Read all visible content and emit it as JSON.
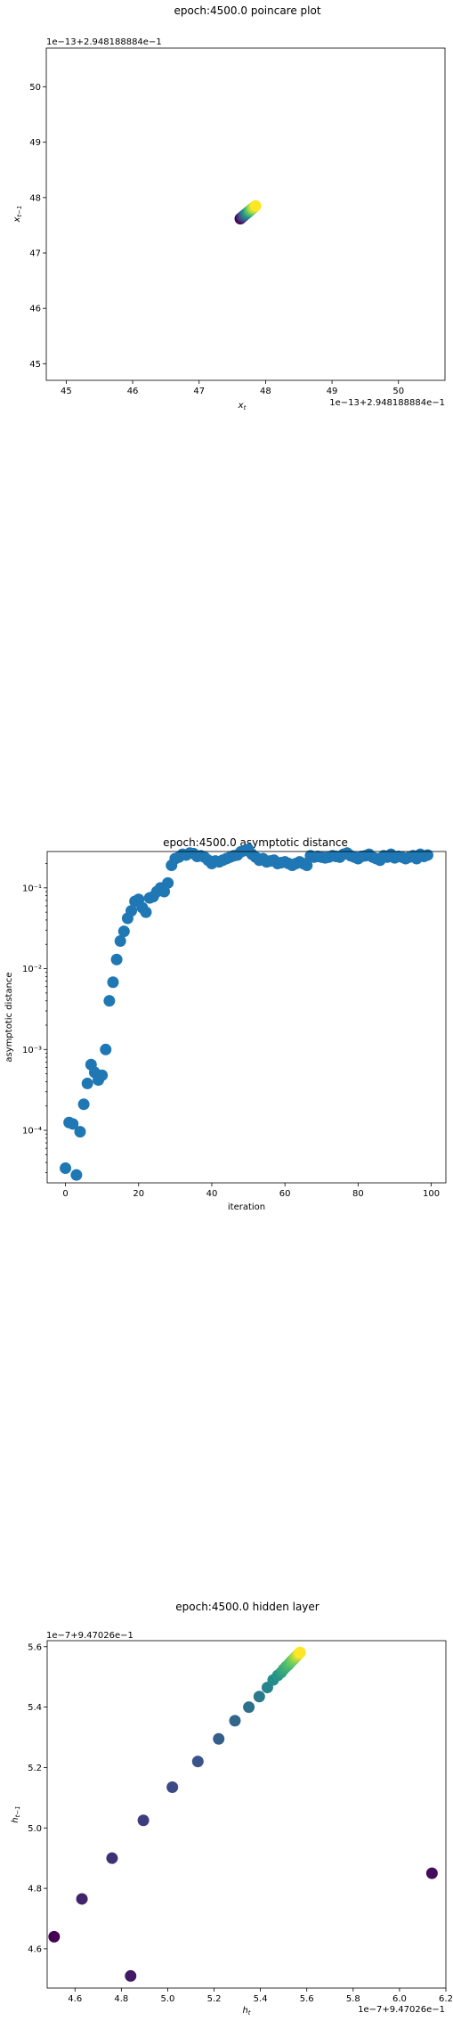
{
  "chart_data": [
    {
      "type": "scatter",
      "title": "epoch:4500.0 poincare plot",
      "xlabel": "x_t",
      "ylabel": "x_{t-1}",
      "offset_x": "1e−13+2.948188884e−1",
      "offset_y": "1e−13+2.948188884e−1",
      "xlim": [
        44.7,
        50.7
      ],
      "ylim": [
        44.7,
        50.7
      ],
      "xticks": [
        45,
        46,
        47,
        48,
        49,
        50
      ],
      "yticks": [
        45,
        46,
        47,
        48,
        49,
        50
      ],
      "xtick_labels": [
        "45",
        "46",
        "47",
        "48",
        "49",
        "50"
      ],
      "ytick_labels": [
        "45",
        "46",
        "47",
        "48",
        "49",
        "50"
      ],
      "colormap": "viridis",
      "points": [
        [
          47.62,
          47.62
        ],
        [
          47.64,
          47.64
        ],
        [
          47.66,
          47.66
        ],
        [
          47.68,
          47.68
        ],
        [
          47.7,
          47.7
        ],
        [
          47.72,
          47.72
        ],
        [
          47.74,
          47.74
        ],
        [
          47.76,
          47.76
        ],
        [
          47.78,
          47.78
        ],
        [
          47.8,
          47.8
        ],
        [
          47.82,
          47.82
        ],
        [
          47.85,
          47.85
        ]
      ]
    },
    {
      "type": "scatter",
      "title": "epoch:4500.0 asymptotic distance",
      "xlabel": "iteration",
      "ylabel": "asymptotic distance",
      "yscale": "log",
      "xlim": [
        -5,
        104
      ],
      "ylim_log10": [
        -4.65,
        -0.55
      ],
      "xticks": [
        0,
        20,
        40,
        60,
        80,
        100
      ],
      "xtick_labels": [
        "0",
        "20",
        "40",
        "60",
        "80",
        "100"
      ],
      "yticks_log10": [
        -4,
        -3,
        -2,
        -1
      ],
      "ytick_labels": [
        "10⁻⁴",
        "10⁻³",
        "10⁻²",
        "10⁻¹"
      ],
      "color": "#1f77b4",
      "x": [
        0,
        1,
        2,
        3,
        4,
        5,
        6,
        7,
        8,
        9,
        10,
        11,
        12,
        13,
        14,
        15,
        16,
        17,
        18,
        19,
        20,
        21,
        22,
        23,
        24,
        25,
        26,
        27,
        28,
        29,
        30,
        31,
        32,
        33,
        34,
        35,
        36,
        37,
        38,
        39,
        40,
        41,
        42,
        43,
        44,
        45,
        46,
        47,
        48,
        49,
        50,
        51,
        52,
        53,
        54,
        55,
        56,
        57,
        58,
        59,
        60,
        61,
        62,
        63,
        64,
        65,
        66,
        67,
        68,
        69,
        70,
        71,
        72,
        73,
        74,
        75,
        76,
        77,
        78,
        79,
        80,
        81,
        82,
        83,
        84,
        85,
        86,
        87,
        88,
        89,
        90,
        91,
        92,
        93,
        94,
        95,
        96,
        97,
        98,
        99
      ],
      "y": [
        3.4e-05,
        0.000125,
        0.00012,
        2.8e-05,
        9.6e-05,
        0.00021,
        0.00038,
        0.00065,
        0.00052,
        0.00042,
        0.00048,
        0.001,
        0.004,
        0.0068,
        0.013,
        0.022,
        0.029,
        0.042,
        0.052,
        0.068,
        0.072,
        0.057,
        0.05,
        0.075,
        0.078,
        0.09,
        0.1,
        0.09,
        0.115,
        0.19,
        0.23,
        0.24,
        0.26,
        0.255,
        0.27,
        0.265,
        0.245,
        0.25,
        0.24,
        0.22,
        0.2,
        0.215,
        0.21,
        0.22,
        0.23,
        0.24,
        0.25,
        0.255,
        0.28,
        0.29,
        0.3,
        0.26,
        0.24,
        0.22,
        0.23,
        0.21,
        0.215,
        0.22,
        0.2,
        0.205,
        0.21,
        0.2,
        0.19,
        0.2,
        0.21,
        0.2,
        0.19,
        0.25,
        0.24,
        0.245,
        0.24,
        0.235,
        0.24,
        0.25,
        0.245,
        0.24,
        0.26,
        0.27,
        0.25,
        0.24,
        0.23,
        0.245,
        0.25,
        0.26,
        0.24,
        0.23,
        0.22,
        0.25,
        0.24,
        0.26,
        0.235,
        0.245,
        0.24,
        0.23,
        0.24,
        0.25,
        0.23,
        0.26,
        0.245,
        0.255
      ]
    },
    {
      "type": "scatter",
      "title": "epoch:4500.0 hidden layer",
      "xlabel": "h_t",
      "ylabel": "h_{t-1}",
      "offset_x": "1e−7+9.47026e−1",
      "offset_y": "1e−7+9.47026e−1",
      "xlim": [
        4.48,
        6.2
      ],
      "ylim": [
        4.47,
        5.62
      ],
      "xticks": [
        4.6,
        4.8,
        5.0,
        5.2,
        5.4,
        5.6,
        5.8,
        6.0,
        6.2
      ],
      "yticks": [
        4.6,
        4.8,
        5.0,
        5.2,
        5.4,
        5.6
      ],
      "xtick_labels": [
        "4.6",
        "4.8",
        "5.0",
        "5.2",
        "5.4",
        "5.6",
        "5.8",
        "6.0",
        "6.2"
      ],
      "ytick_labels": [
        "4.6",
        "4.8",
        "5.0",
        "5.2",
        "5.4",
        "5.6"
      ],
      "colormap": "viridis",
      "points": [
        [
          4.51,
          4.64
        ],
        [
          6.14,
          4.85
        ],
        [
          4.84,
          4.51
        ],
        [
          4.63,
          4.765
        ],
        [
          4.76,
          4.9
        ],
        [
          4.895,
          5.025
        ],
        [
          5.02,
          5.135
        ],
        [
          5.13,
          5.22
        ],
        [
          5.22,
          5.295
        ],
        [
          5.29,
          5.355
        ],
        [
          5.35,
          5.4
        ],
        [
          5.395,
          5.435
        ],
        [
          5.43,
          5.465
        ],
        [
          5.455,
          5.49
        ],
        [
          5.475,
          5.505
        ],
        [
          5.49,
          5.515
        ],
        [
          5.5,
          5.525
        ],
        [
          5.51,
          5.533
        ],
        [
          5.52,
          5.54
        ],
        [
          5.528,
          5.547
        ],
        [
          5.535,
          5.553
        ],
        [
          5.542,
          5.558
        ],
        [
          5.548,
          5.563
        ],
        [
          5.553,
          5.567
        ],
        [
          5.558,
          5.571
        ],
        [
          5.563,
          5.575
        ],
        [
          5.567,
          5.578
        ],
        [
          5.571,
          5.581
        ]
      ]
    }
  ]
}
